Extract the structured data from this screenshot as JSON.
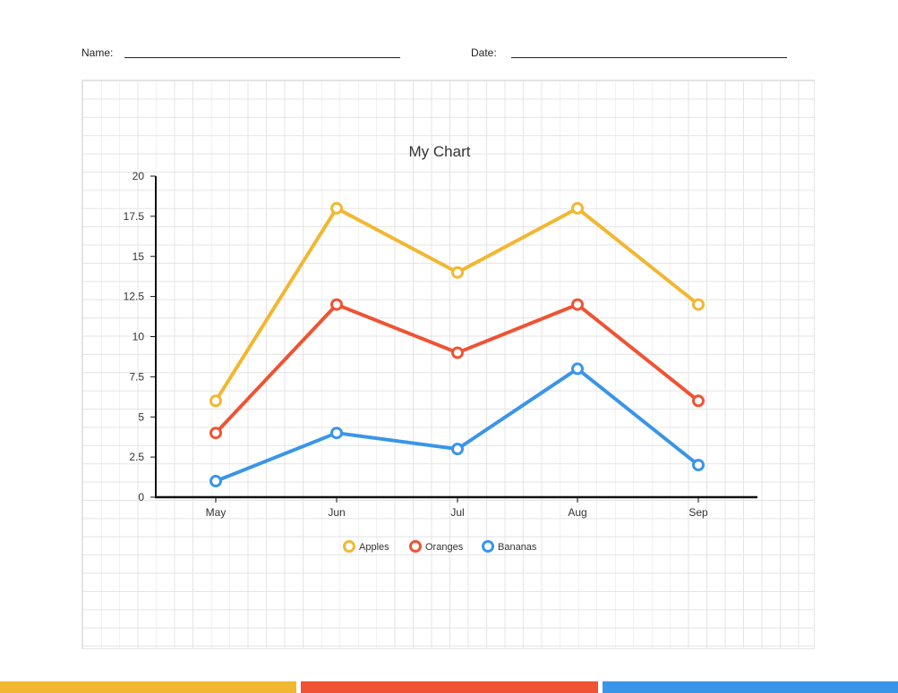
{
  "worksheet": {
    "name_label": "Name:",
    "date_label": "Date:"
  },
  "colors": {
    "apples": "#f2b731",
    "oranges": "#ef5333",
    "bananas": "#3a95e8",
    "axis": "#111111",
    "bar_left": "#f2b731",
    "bar_middle": "#ef5333",
    "bar_right": "#3a95e8"
  },
  "chart_data": {
    "type": "line",
    "title": "My Chart",
    "xlabel": "",
    "ylabel": "",
    "categories": [
      "May",
      "Jun",
      "Jul",
      "Aug",
      "Sep"
    ],
    "ylim": [
      0,
      20
    ],
    "yticks": [
      0,
      2.5,
      5,
      7.5,
      10,
      12.5,
      15,
      17.5,
      20
    ],
    "ytick_labels": [
      "0",
      "2.5",
      "5",
      "7.5",
      "10",
      "12.5",
      "15",
      "17.5",
      "20"
    ],
    "legend_position": "bottom",
    "grid": true,
    "series": [
      {
        "name": "Apples",
        "key": "apples",
        "values": [
          6,
          18,
          14,
          18,
          12
        ]
      },
      {
        "name": "Oranges",
        "key": "oranges",
        "values": [
          4,
          12,
          9,
          12,
          6
        ]
      },
      {
        "name": "Bananas",
        "key": "bananas",
        "values": [
          1,
          4,
          3,
          8,
          2
        ]
      }
    ]
  }
}
